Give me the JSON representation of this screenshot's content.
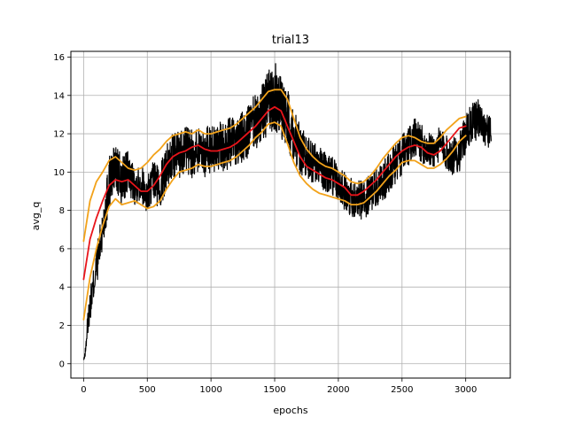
{
  "chart_data": {
    "type": "line",
    "title": "trial13",
    "xlabel": "epochs",
    "ylabel": "avg_q",
    "xlim": [
      -100,
      3350
    ],
    "ylim": [
      -0.75,
      16.3
    ],
    "grid": true,
    "x_ticks": [
      0,
      500,
      1000,
      1500,
      2000,
      2500,
      3000
    ],
    "y_ticks": [
      0,
      2,
      4,
      6,
      8,
      10,
      12,
      14,
      16
    ],
    "colors": {
      "raw": "#000000",
      "mean": "#e8141a",
      "band": "#f2a21a"
    },
    "series": [
      {
        "role": "raw",
        "x": [
          0,
          50,
          100,
          150,
          200,
          250,
          300,
          350,
          400,
          450,
          500,
          550,
          600,
          650,
          700,
          750,
          800,
          850,
          900,
          950,
          1000,
          1050,
          1100,
          1150,
          1200,
          1250,
          1300,
          1350,
          1400,
          1450,
          1500,
          1550,
          1600,
          1650,
          1700,
          1750,
          1800,
          1850,
          1900,
          1950,
          2000,
          2050,
          2100,
          2150,
          2200,
          2250,
          2300,
          2350,
          2400,
          2450,
          2500,
          2550,
          2600,
          2650,
          2700,
          2750,
          2800,
          2850,
          2900,
          2950,
          3000,
          3050,
          3100,
          3150,
          3200
        ],
        "values": [
          0.5,
          3.0,
          5.0,
          7.0,
          9.5,
          10.2,
          9.5,
          10.0,
          9.3,
          9.5,
          8.8,
          9.5,
          9.2,
          10.3,
          10.8,
          11.0,
          11.2,
          10.9,
          11.3,
          11.0,
          11.2,
          11.4,
          11.2,
          11.6,
          11.5,
          11.8,
          12.2,
          12.6,
          13.0,
          13.6,
          14.0,
          13.5,
          12.8,
          12.0,
          11.2,
          10.8,
          10.5,
          10.3,
          10.0,
          9.8,
          9.5,
          9.0,
          8.7,
          8.6,
          8.5,
          8.9,
          9.2,
          9.5,
          10.0,
          10.5,
          10.8,
          11.3,
          11.8,
          11.5,
          11.2,
          11.1,
          11.5,
          11.0,
          10.8,
          11.0,
          12.0,
          12.5,
          12.8,
          12.3,
          12.0
        ],
        "noise": [
          0.3,
          0.8,
          1.0,
          1.2,
          1.4,
          1.4,
          1.3,
          1.1,
          1.0,
          1.0,
          1.0,
          1.1,
          1.2,
          1.2,
          1.2,
          1.3,
          1.3,
          1.3,
          1.3,
          1.3,
          1.3,
          1.3,
          1.3,
          1.3,
          1.3,
          1.4,
          1.5,
          1.5,
          1.6,
          1.7,
          1.8,
          1.7,
          1.6,
          1.5,
          1.3,
          1.2,
          1.1,
          1.1,
          1.0,
          1.0,
          1.0,
          1.0,
          1.0,
          1.0,
          1.0,
          1.0,
          1.0,
          1.0,
          1.1,
          1.1,
          1.1,
          1.1,
          1.0,
          1.0,
          0.9,
          0.9,
          0.9,
          0.9,
          1.0,
          1.0,
          1.0,
          1.1,
          1.0,
          0.9,
          0.8
        ]
      },
      {
        "role": "mean",
        "x": [
          0,
          50,
          100,
          150,
          200,
          250,
          300,
          350,
          400,
          450,
          500,
          550,
          600,
          650,
          700,
          750,
          800,
          850,
          900,
          950,
          1000,
          1050,
          1100,
          1150,
          1200,
          1250,
          1300,
          1350,
          1400,
          1450,
          1500,
          1550,
          1600,
          1650,
          1700,
          1750,
          1800,
          1850,
          1900,
          1950,
          2000,
          2050,
          2100,
          2150,
          2200,
          2250,
          2300,
          2350,
          2400,
          2450,
          2500,
          2550,
          2600,
          2650,
          2700,
          2750,
          2800,
          2850,
          2900,
          2950,
          3000
        ],
        "values": [
          4.4,
          6.5,
          7.6,
          8.5,
          9.3,
          9.6,
          9.5,
          9.6,
          9.3,
          9.0,
          9.0,
          9.3,
          9.8,
          10.4,
          10.8,
          11.0,
          11.1,
          11.3,
          11.4,
          11.2,
          11.1,
          11.1,
          11.2,
          11.3,
          11.5,
          11.8,
          12.1,
          12.4,
          12.8,
          13.2,
          13.4,
          13.2,
          12.4,
          11.6,
          10.8,
          10.3,
          10.1,
          9.9,
          9.7,
          9.6,
          9.4,
          9.2,
          8.8,
          8.8,
          9.0,
          9.3,
          9.6,
          10.0,
          10.4,
          10.8,
          11.1,
          11.3,
          11.4,
          11.3,
          11.0,
          10.9,
          11.1,
          11.5,
          11.9,
          12.3,
          12.4
        ]
      },
      {
        "role": "upper",
        "x": [
          0,
          50,
          100,
          150,
          200,
          250,
          300,
          350,
          400,
          450,
          500,
          550,
          600,
          650,
          700,
          750,
          800,
          850,
          900,
          950,
          1000,
          1050,
          1100,
          1150,
          1200,
          1250,
          1300,
          1350,
          1400,
          1450,
          1500,
          1550,
          1600,
          1650,
          1700,
          1750,
          1800,
          1850,
          1900,
          1950,
          2000,
          2050,
          2100,
          2150,
          2200,
          2250,
          2300,
          2350,
          2400,
          2450,
          2500,
          2550,
          2600,
          2650,
          2700,
          2750,
          2800,
          2850,
          2900,
          2950,
          3000
        ],
        "values": [
          6.4,
          8.5,
          9.5,
          10.0,
          10.6,
          10.8,
          10.5,
          10.2,
          10.1,
          10.2,
          10.5,
          10.9,
          11.2,
          11.6,
          11.9,
          12.0,
          12.1,
          12.0,
          12.2,
          12.0,
          12.0,
          12.1,
          12.2,
          12.3,
          12.5,
          12.8,
          13.1,
          13.4,
          13.8,
          14.2,
          14.3,
          14.3,
          13.8,
          12.8,
          11.8,
          11.2,
          10.8,
          10.5,
          10.3,
          10.2,
          10.0,
          9.8,
          9.5,
          9.4,
          9.5,
          9.8,
          10.2,
          10.7,
          11.1,
          11.5,
          11.8,
          11.9,
          11.8,
          11.6,
          11.5,
          11.5,
          11.8,
          12.2,
          12.5,
          12.8,
          12.9
        ]
      },
      {
        "role": "lower",
        "x": [
          0,
          50,
          100,
          150,
          200,
          250,
          300,
          350,
          400,
          450,
          500,
          550,
          600,
          650,
          700,
          750,
          800,
          850,
          900,
          950,
          1000,
          1050,
          1100,
          1150,
          1200,
          1250,
          1300,
          1350,
          1400,
          1450,
          1500,
          1550,
          1600,
          1650,
          1700,
          1750,
          1800,
          1850,
          1900,
          1950,
          2000,
          2050,
          2100,
          2150,
          2200,
          2250,
          2300,
          2350,
          2400,
          2450,
          2500,
          2550,
          2600,
          2650,
          2700,
          2750,
          2800,
          2850,
          2900,
          2950,
          3000
        ],
        "values": [
          2.3,
          4.5,
          6.0,
          7.2,
          8.2,
          8.6,
          8.3,
          8.4,
          8.5,
          8.3,
          8.1,
          8.2,
          8.5,
          9.1,
          9.6,
          10.0,
          10.1,
          10.2,
          10.4,
          10.3,
          10.3,
          10.4,
          10.5,
          10.6,
          10.8,
          11.1,
          11.4,
          11.8,
          12.1,
          12.5,
          12.6,
          12.4,
          11.5,
          10.5,
          9.8,
          9.4,
          9.1,
          8.9,
          8.8,
          8.7,
          8.6,
          8.5,
          8.3,
          8.3,
          8.4,
          8.7,
          9.0,
          9.4,
          9.8,
          10.1,
          10.5,
          10.6,
          10.6,
          10.4,
          10.2,
          10.2,
          10.4,
          10.7,
          11.1,
          11.6,
          11.9
        ]
      }
    ]
  }
}
